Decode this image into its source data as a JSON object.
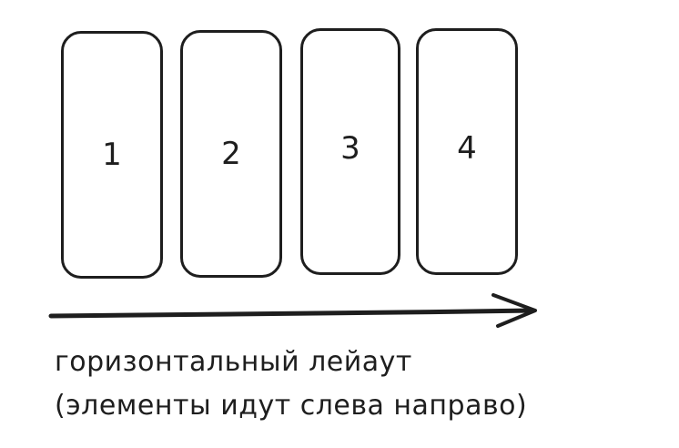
{
  "cards": [
    {
      "number": "1"
    },
    {
      "number": "2"
    },
    {
      "number": "3"
    },
    {
      "number": "4"
    }
  ],
  "caption": {
    "line1": "горизонтальный лейаут",
    "line2": "(элементы идут слева направо)"
  },
  "colors": {
    "stroke": "#1e1e1e",
    "background": "#ffffff"
  }
}
